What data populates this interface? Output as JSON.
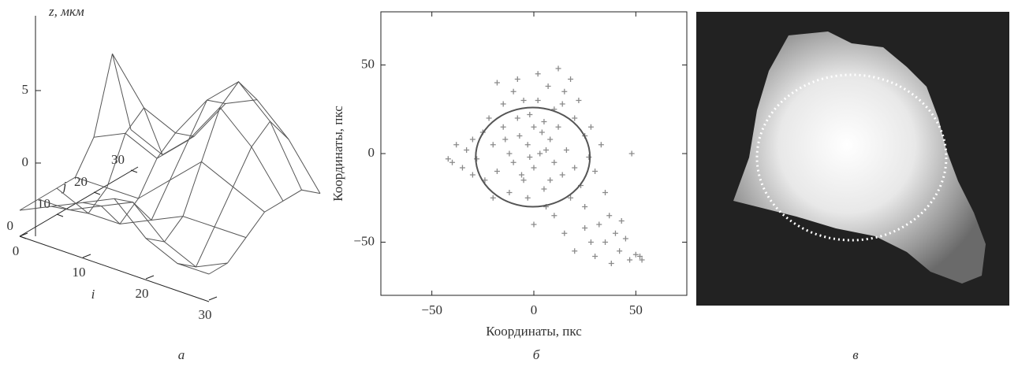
{
  "chart_data": [
    {
      "type": "surface3d",
      "panel_label": "а",
      "z_label": "z, мкм",
      "x_label": "i",
      "y_label": "j",
      "i": [
        0,
        5,
        10,
        15,
        20,
        25,
        30
      ],
      "j": [
        0,
        5,
        10,
        15,
        20,
        25,
        30
      ],
      "z": [
        [
          0,
          0,
          0,
          0,
          2,
          7,
          1
        ],
        [
          1,
          0,
          -1,
          0,
          3,
          4,
          0
        ],
        [
          2,
          1,
          -1,
          0,
          2,
          3,
          2
        ],
        [
          3,
          2,
          0,
          2,
          4,
          6,
          5
        ],
        [
          1,
          0,
          1,
          4,
          7,
          8,
          6
        ],
        [
          0,
          -1,
          1,
          3,
          5,
          6,
          4
        ],
        [
          0,
          0,
          1,
          2,
          2,
          2,
          1
        ]
      ],
      "xticks": [
        0,
        10,
        20,
        30
      ],
      "yticks": [
        0,
        10,
        20,
        30
      ],
      "zticks": [
        0,
        5
      ],
      "color": "#555555"
    },
    {
      "type": "scatter",
      "panel_label": "б",
      "x_label": "Координаты, пкс",
      "y_label": "Координаты, пкс",
      "x": [
        -40,
        -38,
        -35,
        -33,
        -30,
        -28,
        -25,
        -22,
        -20,
        -18,
        -15,
        -15,
        -12,
        -10,
        -10,
        -8,
        -7,
        -5,
        -5,
        -3,
        -2,
        0,
        0,
        2,
        3,
        5,
        5,
        7,
        8,
        10,
        10,
        12,
        12,
        14,
        15,
        16,
        18,
        18,
        20,
        20,
        22,
        23,
        25,
        25,
        27,
        28,
        30,
        32,
        33,
        35,
        35,
        37,
        40,
        42,
        45,
        47,
        50,
        52,
        53,
        48,
        -42,
        -24,
        -18,
        -8,
        2,
        6,
        -12,
        -30,
        -20,
        15,
        20,
        28,
        38,
        43,
        10,
        0,
        -3,
        8,
        25,
        30,
        -6,
        4,
        -14,
        6,
        -2,
        14
      ],
      "y": [
        -5,
        5,
        -8,
        2,
        8,
        -3,
        12,
        20,
        5,
        -10,
        28,
        15,
        0,
        35,
        -5,
        20,
        10,
        -15,
        30,
        5,
        22,
        15,
        -8,
        30,
        0,
        18,
        -20,
        38,
        8,
        25,
        -5,
        48,
        15,
        -12,
        35,
        2,
        42,
        -25,
        20,
        -8,
        30,
        -18,
        10,
        -30,
        -2,
        15,
        -10,
        -40,
        5,
        -22,
        -50,
        -35,
        -45,
        -55,
        -48,
        -60,
        -57,
        -58,
        -60,
        0,
        -3,
        -15,
        40,
        42,
        45,
        -30,
        -22,
        -12,
        -25,
        -45,
        -55,
        -50,
        -62,
        -38,
        -35,
        -40,
        -25,
        -15,
        -42,
        -58,
        -12,
        12,
        8,
        2,
        -2,
        28
      ],
      "xlim": [
        -75,
        75
      ],
      "ylim": [
        -80,
        80
      ],
      "xticks": [
        {
          "value": -50,
          "label": "−50"
        },
        0,
        50
      ],
      "yticks": [
        {
          "value": -50,
          "label": "−50"
        },
        0,
        50
      ],
      "color": "#8a8a8a",
      "circle": {
        "cx": -0.5,
        "cy": -2,
        "r": 28
      }
    },
    {
      "type": "image",
      "panel_label": "в"
    }
  ]
}
